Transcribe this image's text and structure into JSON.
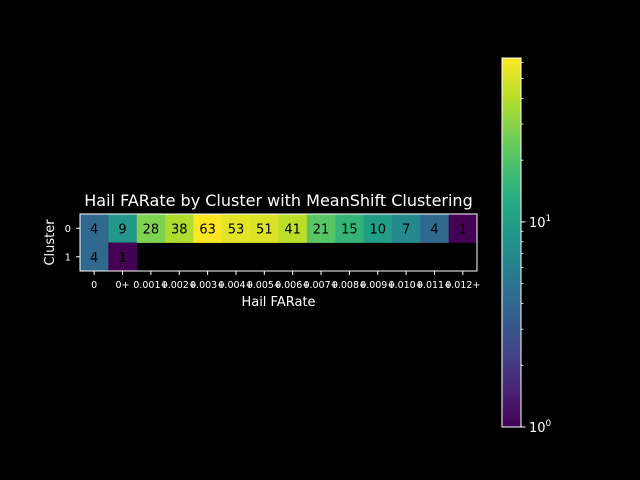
{
  "chart_data": {
    "type": "heatmap",
    "title": "Hail FARate by Cluster with MeanShift Clustering",
    "xlabel": "Hail FARate",
    "ylabel": "Cluster",
    "x_tick_labels": [
      "0",
      "0+",
      "0.001+",
      "0.002+",
      "0.003+",
      "0.004+",
      "0.005+",
      "0.006+",
      "0.007+",
      "0.008+",
      "0.009+",
      "0.010+",
      "0.011+",
      "0.012+"
    ],
    "y_tick_labels": [
      "0",
      "1"
    ],
    "values": [
      [
        4,
        9,
        28,
        38,
        63,
        53,
        51,
        41,
        21,
        15,
        10,
        7,
        4,
        1
      ],
      [
        4,
        1,
        null,
        null,
        null,
        null,
        null,
        null,
        null,
        null,
        null,
        null,
        null,
        null
      ]
    ],
    "colorbar": {
      "scale": "log",
      "range": [
        1,
        63
      ],
      "major_ticks": [
        {
          "value": 1,
          "base": "10",
          "exp": "0"
        },
        {
          "value": 10,
          "base": "10",
          "exp": "1"
        }
      ],
      "colormap": "viridis"
    },
    "colors": {
      "background": "#000000",
      "foreground": "#ffffff",
      "cell_text": "#000000"
    }
  }
}
